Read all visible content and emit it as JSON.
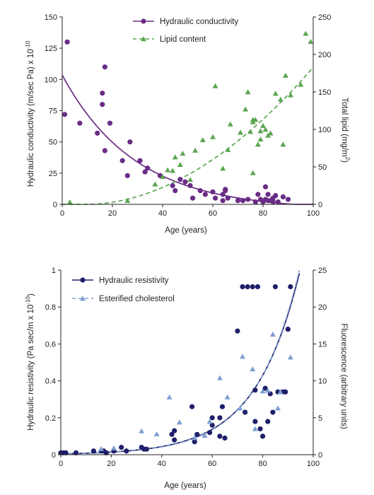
{
  "colors": {
    "purple": "#6a2c86",
    "green": "#5aa550",
    "navy": "#1f1f6b",
    "lightblue": "#7f9fd0"
  },
  "chart_data": [
    {
      "type": "scatter",
      "xlabel": "Age (years)",
      "ylabel": "Hydraulic conductivity (m/sec Pa) x 10",
      "ylabel_exponent": "-10",
      "y2label": "Total lipid (mg/m",
      "y2label_sup": "2",
      "y2label_end": ")",
      "xlim": [
        0,
        100
      ],
      "ylim": [
        0,
        150
      ],
      "y2lim": [
        0,
        250
      ],
      "xticks": [
        "0",
        "20",
        "40",
        "60",
        "80",
        "100"
      ],
      "yticks": [
        "0",
        "25",
        "50",
        "75",
        "100",
        "125",
        "150"
      ],
      "y2ticks": [
        "0",
        "50",
        "100",
        "150",
        "200",
        "250"
      ],
      "legend_position": "top-center",
      "series": [
        {
          "name": "Hydraulic conductivity",
          "axis": "left",
          "marker": "circle",
          "line_style": "solid",
          "points": [
            [
              1,
              72
            ],
            [
              2,
              130
            ],
            [
              7,
              65
            ],
            [
              14,
              57
            ],
            [
              16,
              89
            ],
            [
              16,
              80
            ],
            [
              17,
              110
            ],
            [
              17,
              43
            ],
            [
              19,
              65
            ],
            [
              24,
              35
            ],
            [
              26,
              23
            ],
            [
              27,
              50
            ],
            [
              31,
              35
            ],
            [
              33,
              26
            ],
            [
              34,
              29
            ],
            [
              39,
              23
            ],
            [
              44,
              15
            ],
            [
              45,
              11
            ],
            [
              47,
              20
            ],
            [
              49,
              18
            ],
            [
              51,
              15
            ],
            [
              52,
              5
            ],
            [
              55,
              11
            ],
            [
              57,
              8
            ],
            [
              60,
              10
            ],
            [
              61,
              5
            ],
            [
              64,
              8
            ],
            [
              64,
              3
            ],
            [
              65,
              11
            ],
            [
              65,
              12
            ],
            [
              66,
              5
            ],
            [
              70,
              3
            ],
            [
              72,
              3
            ],
            [
              74,
              4
            ],
            [
              77,
              2
            ],
            [
              78,
              8
            ],
            [
              79,
              4
            ],
            [
              80,
              2
            ],
            [
              81,
              4
            ],
            [
              81,
              14
            ],
            [
              82,
              3
            ],
            [
              82,
              8
            ],
            [
              83,
              3
            ],
            [
              84,
              5
            ],
            [
              84,
              2
            ],
            [
              85,
              7
            ],
            [
              86,
              2
            ],
            [
              88,
              6
            ],
            [
              90,
              4
            ]
          ],
          "fit": {
            "form": "exponential_decay",
            "y0": 108,
            "k": 0.0345,
            "shift": 4.5
          }
        },
        {
          "name": "Lipid content",
          "axis": "right",
          "marker": "triangle",
          "line_style": "dashed",
          "points": [
            [
              3,
              3
            ],
            [
              26,
              5
            ],
            [
              37,
              27
            ],
            [
              40,
              37
            ],
            [
              42,
              46
            ],
            [
              44,
              45
            ],
            [
              45,
              63
            ],
            [
              47,
              53
            ],
            [
              48,
              68
            ],
            [
              51,
              33
            ],
            [
              53,
              72
            ],
            [
              56,
              86
            ],
            [
              60,
              90
            ],
            [
              61,
              158
            ],
            [
              64,
              48
            ],
            [
              66,
              73
            ],
            [
              67,
              107
            ],
            [
              71,
              96
            ],
            [
              73,
              127
            ],
            [
              74,
              150
            ],
            [
              75,
              97
            ],
            [
              76,
              110
            ],
            [
              76,
              113
            ],
            [
              76,
              42
            ],
            [
              77,
              113
            ],
            [
              78,
              80
            ],
            [
              79,
              87
            ],
            [
              79,
              98
            ],
            [
              80,
              105
            ],
            [
              81,
              100
            ],
            [
              82,
              92
            ],
            [
              83,
              95
            ],
            [
              85,
              148
            ],
            [
              87,
              140
            ],
            [
              88,
              80
            ],
            [
              89,
              172
            ],
            [
              91,
              146
            ],
            [
              95,
              160
            ],
            [
              97,
              228
            ],
            [
              99,
              217
            ]
          ],
          "fit": {
            "form": "power",
            "x0": 10,
            "a": 0.0354,
            "p": 1.9
          }
        }
      ]
    },
    {
      "type": "scatter",
      "xlabel": "Age (years)",
      "ylabel": "Hydraulic resistivity (Pa sec/m x 10",
      "ylabel_exponent": "-10",
      "ylabel_end": ")",
      "y2label": "Fluorescence (arbitrary units)",
      "xlim": [
        0,
        100
      ],
      "ylim": [
        0,
        1
      ],
      "y2lim": [
        0,
        25
      ],
      "xticks": [
        "0",
        "20",
        "40",
        "60",
        "80",
        "100"
      ],
      "yticks": [
        "0",
        "0.2",
        "0.4",
        "0.6",
        "0.8",
        "1"
      ],
      "y2ticks": [
        "0",
        "5",
        "10",
        "15",
        "20",
        "25"
      ],
      "legend_position": "top-left",
      "series": [
        {
          "name": "Hydraulic resistivity",
          "axis": "left",
          "marker": "circle",
          "line_style": "solid",
          "points": [
            [
              0,
              0.01
            ],
            [
              1,
              0.01
            ],
            [
              2,
              0.01
            ],
            [
              6,
              0.01
            ],
            [
              13,
              0.02
            ],
            [
              16,
              0.02
            ],
            [
              17,
              0.02
            ],
            [
              18,
              0.01
            ],
            [
              21,
              0.02
            ],
            [
              24,
              0.04
            ],
            [
              26,
              0.02
            ],
            [
              32,
              0.04
            ],
            [
              33,
              0.03
            ],
            [
              34,
              0.03
            ],
            [
              44,
              0.11
            ],
            [
              45,
              0.08
            ],
            [
              45,
              0.13
            ],
            [
              52,
              0.26
            ],
            [
              53,
              0.07
            ],
            [
              54,
              0.11
            ],
            [
              59,
              0.12
            ],
            [
              60,
              0.16
            ],
            [
              60,
              0.2
            ],
            [
              63,
              0.2
            ],
            [
              63,
              0.1
            ],
            [
              64,
              0.26
            ],
            [
              65,
              0.09
            ],
            [
              70,
              0.67
            ],
            [
              72,
              0.91
            ],
            [
              73,
              0.23
            ],
            [
              74,
              0.91
            ],
            [
              76,
              0.91
            ],
            [
              77,
              0.18
            ],
            [
              77,
              0.35
            ],
            [
              78,
              0.91
            ],
            [
              79,
              0.14
            ],
            [
              80,
              0.1
            ],
            [
              81,
              0.36
            ],
            [
              82,
              0.18
            ],
            [
              83,
              0.33
            ],
            [
              84,
              0.23
            ],
            [
              85,
              0.91
            ],
            [
              86,
              0.34
            ],
            [
              88,
              0.34
            ],
            [
              89,
              0.34
            ],
            [
              90,
              0.68
            ],
            [
              91,
              0.91
            ]
          ],
          "fit": {
            "form": "exponential",
            "a": 0.0045,
            "k": 0.057
          }
        },
        {
          "name": "Esterified cholesterol",
          "axis": "right",
          "marker": "triangle",
          "line_style": "dashed",
          "points": [
            [
              16,
              0.8
            ],
            [
              21,
              0.9
            ],
            [
              32,
              3.2
            ],
            [
              38,
              2.8
            ],
            [
              43,
              7.8
            ],
            [
              47,
              4.4
            ],
            [
              53,
              2.3
            ],
            [
              57,
              2.6
            ],
            [
              59,
              4.5
            ],
            [
              63,
              10.4
            ],
            [
              66,
              7.8
            ],
            [
              71,
              6.3
            ],
            [
              72,
              13.3
            ],
            [
              76,
              11.6
            ],
            [
              77,
              3.5
            ],
            [
              80,
              8.6
            ],
            [
              82,
              8.7
            ],
            [
              84,
              16.3
            ],
            [
              86,
              6.3
            ],
            [
              87,
              8.5
            ],
            [
              91,
              13.2
            ]
          ],
          "fit": {
            "form": "exponential",
            "a": 0.104,
            "k": 0.058
          }
        }
      ]
    }
  ]
}
